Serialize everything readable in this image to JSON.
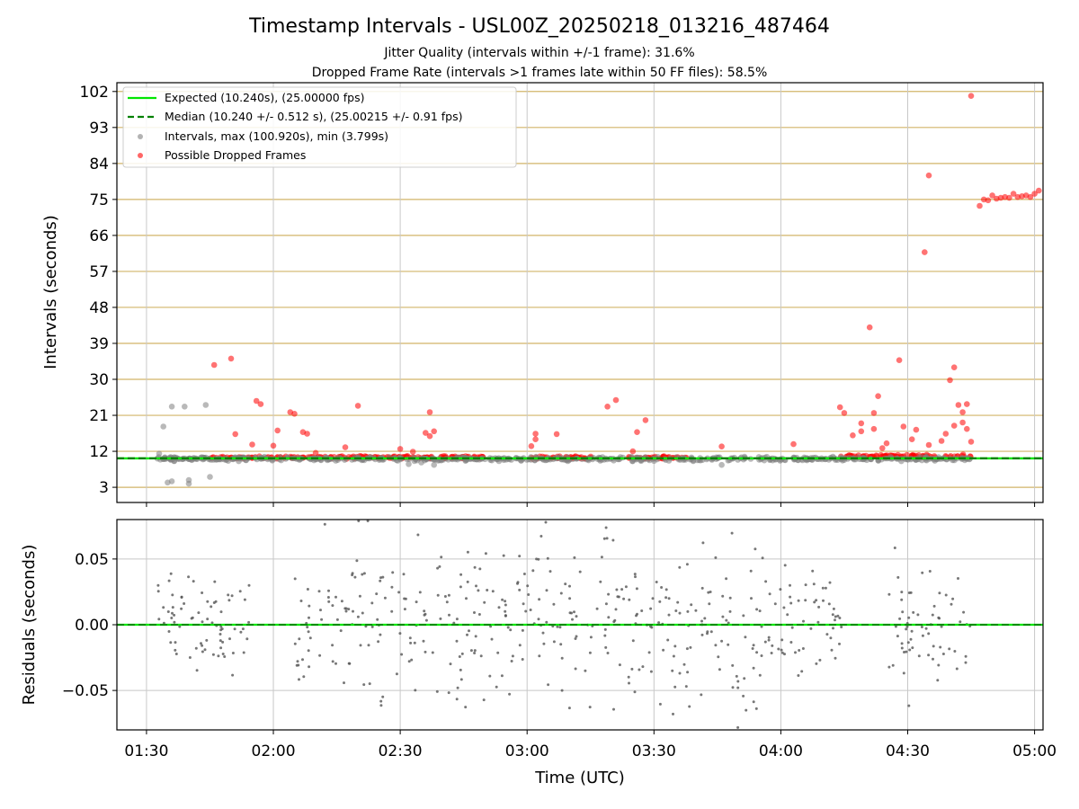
{
  "title": "Timestamp Intervals - USL00Z_20250218_013216_487464",
  "subtitle_1": "Jitter Quality (intervals within +/-1 frame): 31.6%",
  "subtitle_2": "Dropped Frame Rate (intervals >1 frames late within 50 FF files): 58.5%",
  "colors": {
    "expected": "#00e600",
    "median": "#008000",
    "intervals": "#808080",
    "dropped": "#ff0000",
    "hgrid": "#d2b468",
    "grid": "#c8c8c8"
  },
  "chart_data": [
    {
      "type": "scatter",
      "ylabel": "Intervals (seconds)",
      "yticks": [
        3,
        12,
        21,
        30,
        39,
        48,
        57,
        66,
        75,
        84,
        93,
        102
      ],
      "ylim": [
        -0.8,
        104.2
      ],
      "xlim_minutes": [
        83,
        302
      ],
      "grid": "horizontal lines at y ticks, vertical lines at x ticks",
      "legend_position": "upper-left",
      "legend": [
        "Expected (10.240s), (25.00000 fps)",
        "Median (10.240 +/- 0.512 s), (25.00215 +/- 0.91 fps)",
        "Intervals, max (100.920s), min (3.799s)",
        "Possible Dropped Frames"
      ],
      "expected_interval": 10.24,
      "median_interval": 10.24,
      "dropped_frames_outliers": [
        {
          "t": "01:46",
          "y": 33.6
        },
        {
          "t": "01:50",
          "y": 35.2
        },
        {
          "t": "01:51",
          "y": 16.3
        },
        {
          "t": "01:55",
          "y": 13.7
        },
        {
          "t": "01:56",
          "y": 24.6
        },
        {
          "t": "01:57",
          "y": 23.8
        },
        {
          "t": "02:00",
          "y": 13.4
        },
        {
          "t": "02:01",
          "y": 17.2
        },
        {
          "t": "02:04",
          "y": 21.8
        },
        {
          "t": "02:05",
          "y": 21.4
        },
        {
          "t": "02:07",
          "y": 16.8
        },
        {
          "t": "02:08",
          "y": 16.4
        },
        {
          "t": "02:10",
          "y": 11.6
        },
        {
          "t": "02:17",
          "y": 13.0
        },
        {
          "t": "02:20",
          "y": 23.4
        },
        {
          "t": "02:30",
          "y": 12.6
        },
        {
          "t": "02:33",
          "y": 11.9
        },
        {
          "t": "02:36",
          "y": 16.6
        },
        {
          "t": "02:37",
          "y": 21.8
        },
        {
          "t": "02:37",
          "y": 15.8
        },
        {
          "t": "02:38",
          "y": 17.0
        },
        {
          "t": "03:01",
          "y": 13.3
        },
        {
          "t": "03:02",
          "y": 16.4
        },
        {
          "t": "03:02",
          "y": 15.0
        },
        {
          "t": "03:07",
          "y": 16.3
        },
        {
          "t": "03:19",
          "y": 23.2
        },
        {
          "t": "03:21",
          "y": 24.8
        },
        {
          "t": "03:25",
          "y": 12.0
        },
        {
          "t": "03:26",
          "y": 16.8
        },
        {
          "t": "03:28",
          "y": 19.8
        },
        {
          "t": "03:46",
          "y": 13.2
        },
        {
          "t": "04:03",
          "y": 13.8
        },
        {
          "t": "04:14",
          "y": 23.0
        },
        {
          "t": "04:15",
          "y": 21.6
        },
        {
          "t": "04:17",
          "y": 16.0
        },
        {
          "t": "04:19",
          "y": 19.0
        },
        {
          "t": "04:19",
          "y": 17.0
        },
        {
          "t": "04:21",
          "y": 43.0
        },
        {
          "t": "04:22",
          "y": 21.6
        },
        {
          "t": "04:22",
          "y": 17.6
        },
        {
          "t": "04:23",
          "y": 25.8
        },
        {
          "t": "04:24",
          "y": 12.8
        },
        {
          "t": "04:25",
          "y": 14.0
        },
        {
          "t": "04:28",
          "y": 34.8
        },
        {
          "t": "04:29",
          "y": 18.2
        },
        {
          "t": "04:31",
          "y": 15.0
        },
        {
          "t": "04:32",
          "y": 17.4
        },
        {
          "t": "04:34",
          "y": 61.8
        },
        {
          "t": "04:35",
          "y": 81.0
        },
        {
          "t": "04:35",
          "y": 13.6
        },
        {
          "t": "04:38",
          "y": 14.6
        },
        {
          "t": "04:39",
          "y": 16.4
        },
        {
          "t": "04:40",
          "y": 29.8
        },
        {
          "t": "04:41",
          "y": 18.4
        },
        {
          "t": "04:41",
          "y": 33.0
        },
        {
          "t": "04:42",
          "y": 23.6
        },
        {
          "t": "04:43",
          "y": 21.8
        },
        {
          "t": "04:43",
          "y": 19.2
        },
        {
          "t": "04:44",
          "y": 23.8
        },
        {
          "t": "04:44",
          "y": 17.6
        },
        {
          "t": "04:45",
          "y": 14.4
        },
        {
          "t": "04:45",
          "y": 100.9
        },
        {
          "t": "04:47",
          "y": 73.4
        },
        {
          "t": "04:48",
          "y": 75.0
        },
        {
          "t": "04:49",
          "y": 74.8
        },
        {
          "t": "04:50",
          "y": 76.0
        },
        {
          "t": "04:51",
          "y": 75.2
        },
        {
          "t": "04:52",
          "y": 75.4
        },
        {
          "t": "04:53",
          "y": 75.6
        },
        {
          "t": "04:54",
          "y": 75.4
        },
        {
          "t": "04:55",
          "y": 76.4
        },
        {
          "t": "04:56",
          "y": 75.6
        },
        {
          "t": "04:57",
          "y": 75.8
        },
        {
          "t": "04:58",
          "y": 76.0
        },
        {
          "t": "04:59",
          "y": 75.6
        },
        {
          "t": "05:00",
          "y": 76.4
        },
        {
          "t": "05:01",
          "y": 77.2
        }
      ],
      "intervals_outliers": [
        {
          "t": "01:33",
          "y": 11.4
        },
        {
          "t": "01:34",
          "y": 18.2
        },
        {
          "t": "01:35",
          "y": 4.2
        },
        {
          "t": "01:36",
          "y": 23.2
        },
        {
          "t": "01:36",
          "y": 4.5
        },
        {
          "t": "01:39",
          "y": 23.2
        },
        {
          "t": "01:40",
          "y": 3.9
        },
        {
          "t": "01:40",
          "y": 4.8
        },
        {
          "t": "01:44",
          "y": 23.6
        },
        {
          "t": "01:45",
          "y": 5.6
        },
        {
          "t": "02:32",
          "y": 8.8
        },
        {
          "t": "02:35",
          "y": 9.2
        },
        {
          "t": "02:38",
          "y": 8.6
        },
        {
          "t": "03:46",
          "y": 8.6
        }
      ],
      "dense_bands": [
        {
          "series": "Possible Dropped Frames",
          "from": "01:45",
          "to": "02:50",
          "y_center": 10.5
        },
        {
          "series": "Possible Dropped Frames",
          "from": "03:00",
          "to": "03:16",
          "y_center": 10.4
        },
        {
          "series": "Possible Dropped Frames",
          "from": "03:24",
          "to": "03:38",
          "y_center": 10.4
        },
        {
          "series": "Possible Dropped Frames",
          "from": "04:14",
          "to": "04:45",
          "y_center": 10.8
        },
        {
          "series": "Intervals",
          "from": "01:32",
          "to": "04:45",
          "y_center": 10.1
        }
      ]
    },
    {
      "type": "scatter",
      "xlabel": "Time (UTC)",
      "ylabel": "Residuals (seconds)",
      "yticks": [
        "0.05",
        "0.00",
        "−0.05"
      ],
      "ylim": [
        -0.08,
        0.08
      ],
      "xticks": [
        "01:30",
        "02:00",
        "02:30",
        "03:00",
        "03:30",
        "04:00",
        "04:30",
        "05:00"
      ],
      "series_color": "gray",
      "residual_clusters": [
        {
          "from": "01:32",
          "to": "01:55",
          "spread": 0.045
        },
        {
          "from": "02:05",
          "to": "02:30",
          "spread": 0.08
        },
        {
          "from": "02:30",
          "to": "03:00",
          "spread": 0.08
        },
        {
          "from": "03:00",
          "to": "03:30",
          "spread": 0.08
        },
        {
          "from": "03:30",
          "to": "04:00",
          "spread": 0.08
        },
        {
          "from": "04:00",
          "to": "04:15",
          "spread": 0.06
        },
        {
          "from": "04:25",
          "to": "04:45",
          "spread": 0.06
        }
      ],
      "zero_line": 0.0
    }
  ]
}
